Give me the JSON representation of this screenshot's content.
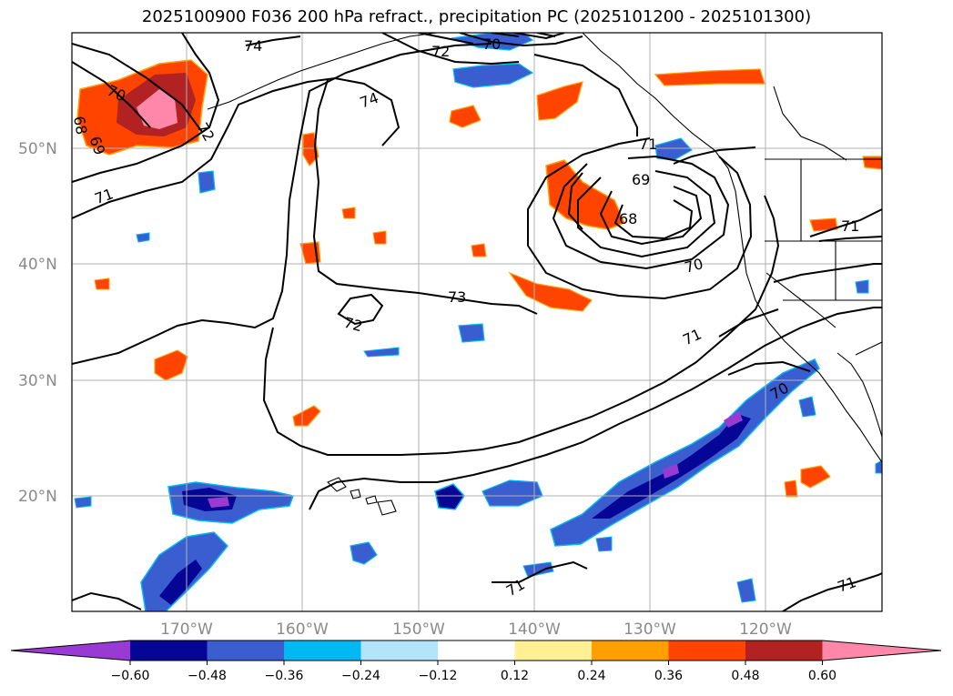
{
  "title": "2025100900 F036 200 hPa refract., precipitation PC (2025101200 - 2025101300)",
  "lat_ticks": [
    "50°N",
    "40°N",
    "30°N",
    "20°N"
  ],
  "lon_ticks": [
    "170°W",
    "160°W",
    "150°W",
    "140°W",
    "130°W",
    "120°W"
  ],
  "colorbar": {
    "ticks": [
      "−0.60",
      "−0.48",
      "−0.36",
      "−0.24",
      "−0.12",
      "0.12",
      "0.24",
      "0.36",
      "0.48",
      "0.60"
    ],
    "colors": [
      "#9a3ad4",
      "#050596",
      "#3a5ed0",
      "#00b8f4",
      "#b2e4fa",
      "#ffffff",
      "#fff094",
      "#ffa000",
      "#ff4400",
      "#b22222",
      "#ff88aa"
    ]
  },
  "contour_labels": [
    "74",
    "74",
    "73",
    "72",
    "72",
    "72",
    "71",
    "71",
    "71",
    "71",
    "71",
    "71",
    "70",
    "70",
    "70",
    "70",
    "69",
    "69",
    "68",
    "68"
  ],
  "colors": {
    "land_outline": "#000000",
    "grid": "#b0b0b0"
  }
}
